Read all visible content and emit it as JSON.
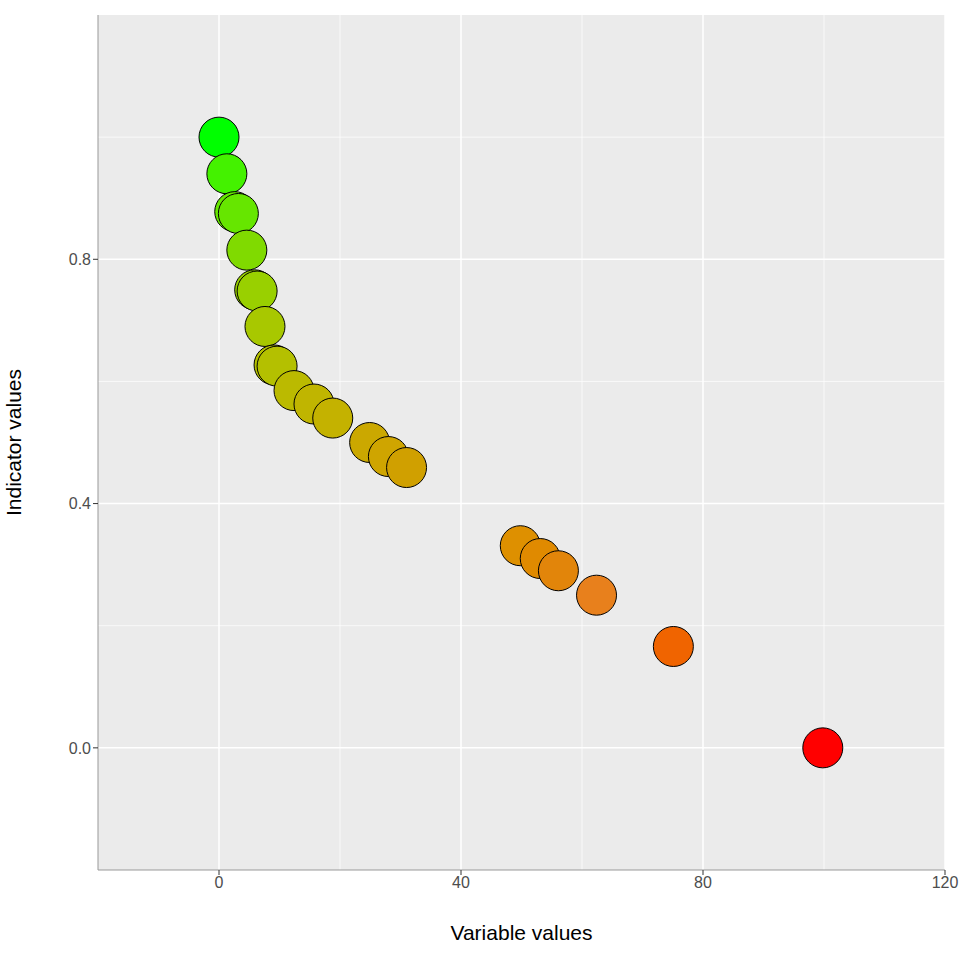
{
  "chart_data": {
    "type": "scatter",
    "x_label": "Variable values",
    "y_label": "Indicator values",
    "x": [
      0,
      1.3,
      2.6,
      3.2,
      4.6,
      5.9,
      6.3,
      7.6,
      9.1,
      9.6,
      12.4,
      15.7,
      18.8,
      24.9,
      28,
      31,
      49.8,
      53.1,
      56.1,
      62.4,
      75.1,
      99.8
    ],
    "values": [
      1.0,
      0.94,
      0.878,
      0.875,
      0.815,
      0.75,
      0.748,
      0.69,
      0.627,
      0.625,
      0.585,
      0.563,
      0.54,
      0.5,
      0.477,
      0.459,
      0.331,
      0.31,
      0.29,
      0.25,
      0.166,
      0
    ],
    "colors": [
      "#00FF00",
      "#44F200",
      "#66E600",
      "#66E600",
      "#80DA00",
      "#99D000",
      "#99D000",
      "#A8C800",
      "#B4C000",
      "#B4C000",
      "#BBBA00",
      "#C0B500",
      "#C4B200",
      "#CBA800",
      "#CFA500",
      "#D0A000",
      "#DE9000",
      "#E08A00",
      "#E2850A",
      "#E8801C",
      "#F06400",
      "#FF0000"
    ],
    "xlim": [
      -20,
      120
    ],
    "ylim": [
      -0.2,
      1.2
    ],
    "xticks": [
      0,
      40,
      80,
      120
    ],
    "yticks": [
      {
        "value": 0,
        "label": "0.0"
      },
      {
        "value": 0.4,
        "label": "0.4"
      },
      {
        "value": 0.8,
        "label": "0.8"
      }
    ],
    "grid": true,
    "marker": "circle"
  }
}
